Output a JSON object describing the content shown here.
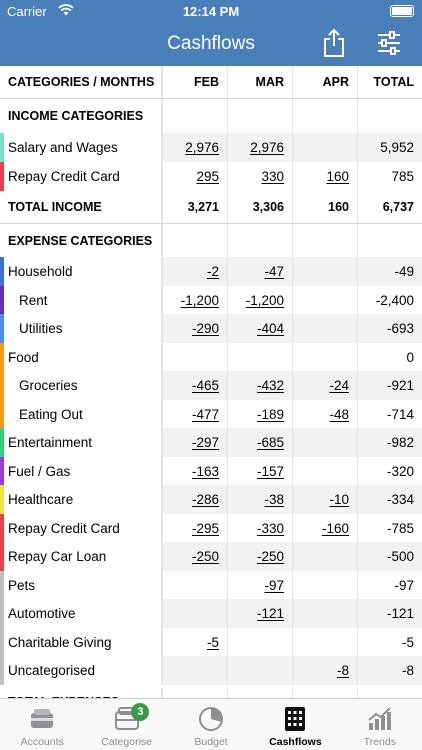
{
  "status_bar": {
    "carrier": "Carrier",
    "time": "12:14 PM"
  },
  "nav": {
    "title": "Cashflows",
    "share_icon": "share-icon",
    "filter_icon": "filter-sliders-icon"
  },
  "table": {
    "headers": [
      "CATEGORIES / MONTHS",
      "FEB",
      "MAR",
      "APR",
      "TOTAL"
    ],
    "income_section": "INCOME CATEGORIES",
    "income_rows": [
      {
        "label": "Salary and Wages",
        "feb": "2,976",
        "mar": "2,976",
        "apr": "",
        "total": "5,952",
        "color": "#7ee0c9"
      },
      {
        "label": "Repay Credit Card",
        "feb": "295",
        "mar": "330",
        "apr": "160",
        "total": "785",
        "color": "#e8434c"
      }
    ],
    "total_income": {
      "label": "TOTAL INCOME",
      "feb": "3,271",
      "mar": "3,306",
      "apr": "160",
      "total": "6,737"
    },
    "expense_section": "EXPENSE CATEGORIES",
    "expense_rows": [
      {
        "label": "Household",
        "feb": "-2",
        "mar": "-47",
        "apr": "",
        "total": "-49",
        "color": "#3e6fd8"
      },
      {
        "label": "Rent",
        "feb": "-1,200",
        "mar": "-1,200",
        "apr": "",
        "total": "-2,400",
        "color": "#6a2fb0"
      },
      {
        "label": "Utilities",
        "feb": "-290",
        "mar": "-404",
        "apr": "",
        "total": "-693",
        "color": "#4b8ff0"
      },
      {
        "label": "Food",
        "feb": "",
        "mar": "",
        "apr": "",
        "total": "0",
        "color": "#f39a1e"
      },
      {
        "label": "Groceries",
        "feb": "-465",
        "mar": "-432",
        "apr": "-24",
        "total": "-921",
        "color": "#f39a1e"
      },
      {
        "label": "Eating Out",
        "feb": "-477",
        "mar": "-189",
        "apr": "-48",
        "total": "-714",
        "color": "#f39a1e"
      },
      {
        "label": "Entertainment",
        "feb": "-297",
        "mar": "-685",
        "apr": "",
        "total": "-982",
        "color": "#33d17a"
      },
      {
        "label": "Fuel / Gas",
        "feb": "-163",
        "mar": "-157",
        "apr": "",
        "total": "-320",
        "color": "#9a3fd0"
      },
      {
        "label": "Healthcare",
        "feb": "-286",
        "mar": "-38",
        "apr": "-10",
        "total": "-334",
        "color": "#f0e24a"
      },
      {
        "label": "Repay Credit Card",
        "feb": "-295",
        "mar": "-330",
        "apr": "-160",
        "total": "-785",
        "color": "#e8434c"
      },
      {
        "label": "Repay Car Loan",
        "feb": "-250",
        "mar": "-250",
        "apr": "",
        "total": "-500",
        "color": "#e8434c"
      },
      {
        "label": "Pets",
        "feb": "",
        "mar": "-97",
        "apr": "",
        "total": "-97",
        "color": "#c0c0c0"
      },
      {
        "label": "Automotive",
        "feb": "",
        "mar": "-121",
        "apr": "",
        "total": "-121",
        "color": "#c0c0c0"
      },
      {
        "label": "Charitable Giving",
        "feb": "-5",
        "mar": "",
        "apr": "",
        "total": "-5",
        "color": "#c0c0c0"
      },
      {
        "label": "Uncategorised",
        "feb": "",
        "mar": "",
        "apr": "-8",
        "total": "-8",
        "color": "#c0c0c0"
      }
    ],
    "total_expenses": {
      "label": "TOTAL EXPENSES"
    }
  },
  "tabs": [
    {
      "label": "Accounts",
      "icon": "wallet-icon"
    },
    {
      "label": "Categorise",
      "icon": "trays-icon",
      "badge": "3"
    },
    {
      "label": "Budget",
      "icon": "pie-chart-icon"
    },
    {
      "label": "Cashflows",
      "icon": "calculator-icon",
      "active": true
    },
    {
      "label": "Trends",
      "icon": "trend-bars-icon"
    }
  ]
}
